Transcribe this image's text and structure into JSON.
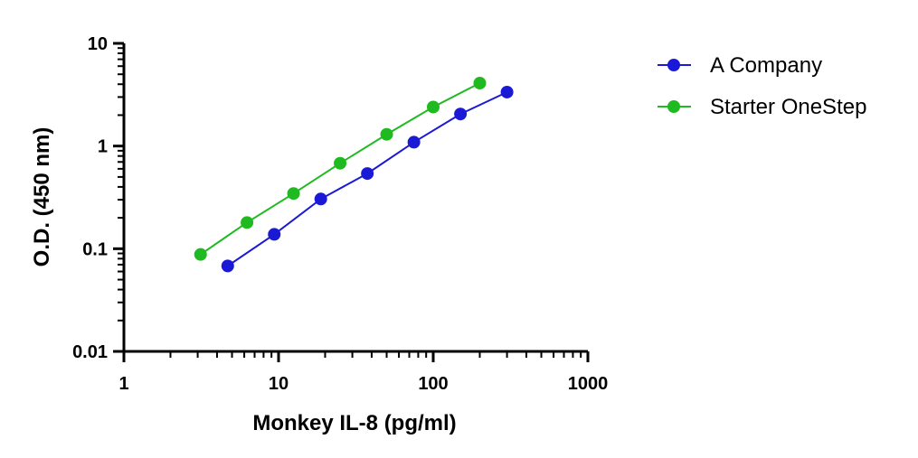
{
  "chart_data": {
    "type": "line",
    "title": "",
    "xlabel": "Monkey IL-8 (pg/ml)",
    "ylabel": "O.D. (450 nm)",
    "x_scale": "log",
    "y_scale": "log",
    "xlim": [
      1,
      1000
    ],
    "ylim": [
      0.01,
      10
    ],
    "x_ticks": [
      "1",
      "10",
      "100",
      "1000"
    ],
    "y_ticks": [
      "0.01",
      "0.1",
      "1",
      "10"
    ],
    "grid": false,
    "legend_position": "top-right",
    "series": [
      {
        "name": "A Company",
        "color": "#1a1ad6",
        "marker": "circle",
        "points": [
          {
            "x": 4.69,
            "y": 0.068
          },
          {
            "x": 9.38,
            "y": 0.138
          },
          {
            "x": 18.75,
            "y": 0.305
          },
          {
            "x": 37.5,
            "y": 0.54
          },
          {
            "x": 75,
            "y": 1.09
          },
          {
            "x": 150,
            "y": 2.05
          },
          {
            "x": 300,
            "y": 3.35
          }
        ]
      },
      {
        "name": "Starter OneStep",
        "color": "#1fba1f",
        "marker": "circle",
        "points": [
          {
            "x": 3.13,
            "y": 0.088
          },
          {
            "x": 6.25,
            "y": 0.18
          },
          {
            "x": 12.5,
            "y": 0.345
          },
          {
            "x": 25,
            "y": 0.68
          },
          {
            "x": 50,
            "y": 1.3
          },
          {
            "x": 100,
            "y": 2.4
          },
          {
            "x": 200,
            "y": 4.1
          }
        ]
      }
    ]
  }
}
